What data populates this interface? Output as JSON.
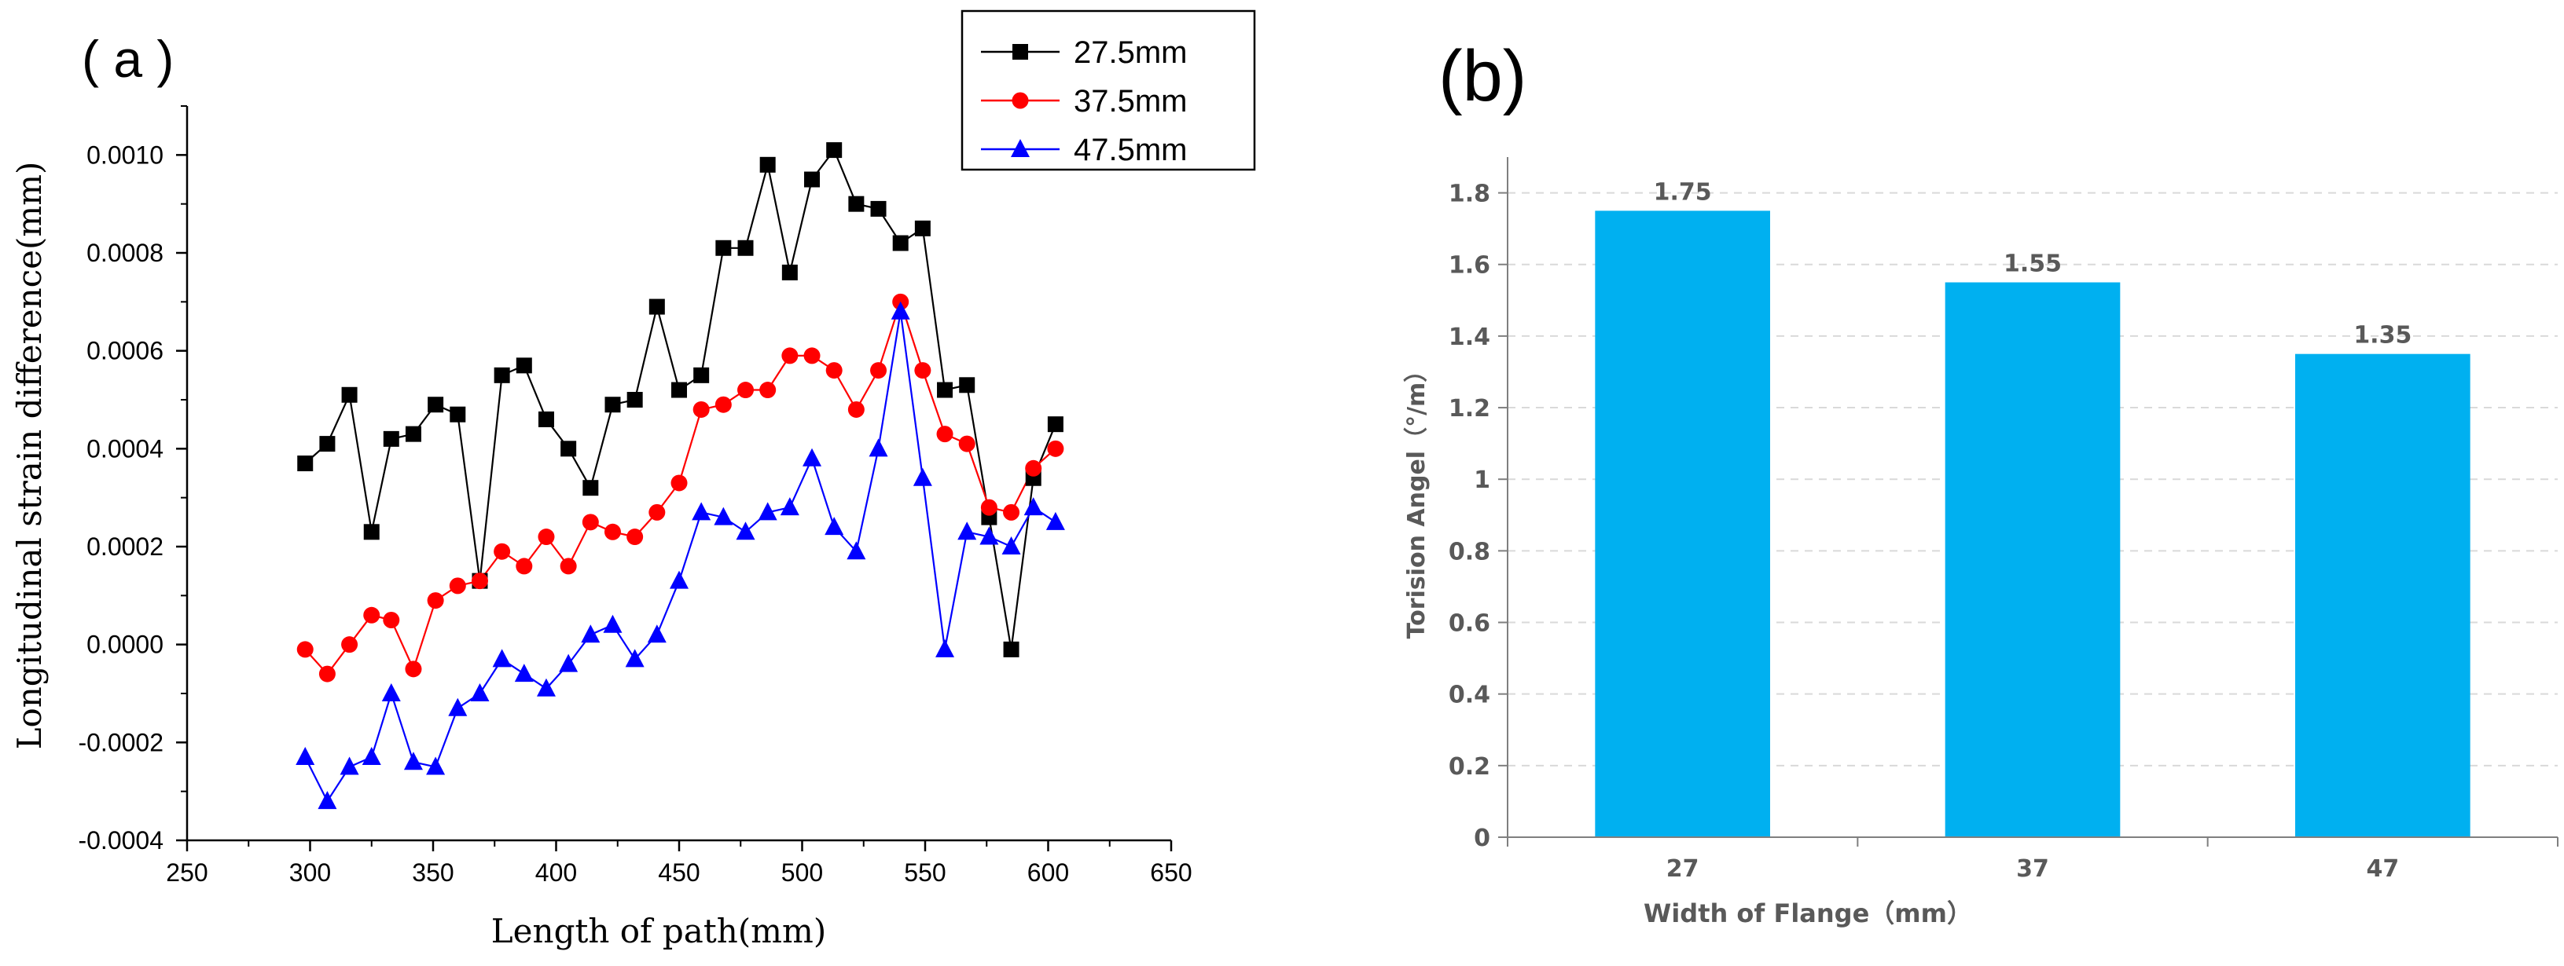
{
  "chart_data": [
    {
      "panel_label": "( a )",
      "type": "line",
      "xlabel": "Length of path(mm)",
      "ylabel": "Longitudinal strain difference(mm)",
      "xlim": [
        250,
        650
      ],
      "ylim": [
        -0.0004,
        0.0011
      ],
      "xticks": [
        250,
        300,
        350,
        400,
        450,
        500,
        550,
        600,
        650
      ],
      "yticks": [
        -0.0004,
        -0.0002,
        0.0,
        0.0002,
        0.0004,
        0.0006,
        0.0008,
        0.001
      ],
      "ytick_labels": [
        "-0.0004",
        "-0.0002",
        "0.0000",
        "0.0002",
        "0.0004",
        "0.0006",
        "0.0008",
        "0.0010"
      ],
      "legend_position": "top-right",
      "x": [
        298,
        307,
        316,
        325,
        333,
        342,
        351,
        360,
        369,
        378,
        387,
        396,
        405,
        414,
        423,
        432,
        441,
        450,
        459,
        468,
        477,
        486,
        495,
        504,
        513,
        522,
        531,
        540,
        549,
        558,
        567,
        576,
        585,
        594,
        603
      ],
      "series": [
        {
          "name": "27.5mm",
          "color": "#000000",
          "marker": "square",
          "values": [
            0.00037,
            0.00041,
            0.00051,
            0.00023,
            0.00042,
            0.00043,
            0.00049,
            0.00047,
            0.00013,
            0.00055,
            0.00057,
            0.00046,
            0.0004,
            0.00032,
            0.00049,
            0.0005,
            0.00069,
            0.00052,
            0.00055,
            0.00081,
            0.00081,
            0.00098,
            0.00076,
            0.00095,
            0.00101,
            0.0009,
            0.00089,
            0.00082,
            0.00085,
            0.00052,
            0.00053,
            0.00026,
            -1e-05,
            0.00034,
            0.00045
          ]
        },
        {
          "name": "37.5mm",
          "color": "#ff0000",
          "marker": "circle",
          "values": [
            -1e-05,
            -6e-05,
            0.0,
            6e-05,
            5e-05,
            -5e-05,
            9e-05,
            0.00012,
            0.00013,
            0.00019,
            0.00016,
            0.00022,
            0.00016,
            0.00025,
            0.00023,
            0.00022,
            0.00027,
            0.00033,
            0.00048,
            0.00049,
            0.00052,
            0.00052,
            0.00059,
            0.00059,
            0.00056,
            0.00048,
            0.00056,
            0.0007,
            0.00056,
            0.00043,
            0.00041,
            0.00028,
            0.00027,
            0.00036,
            0.0004
          ]
        },
        {
          "name": "47.5mm",
          "color": "#0000ff",
          "marker": "triangle",
          "values": [
            -0.00023,
            -0.00032,
            -0.00025,
            -0.00023,
            -0.0001,
            -0.00024,
            -0.00025,
            -0.00013,
            -0.0001,
            -3e-05,
            -6e-05,
            -9e-05,
            -4e-05,
            2e-05,
            4e-05,
            -3e-05,
            2e-05,
            0.00013,
            0.00027,
            0.00026,
            0.00023,
            0.00027,
            0.00028,
            0.00038,
            0.00024,
            0.00019,
            0.0004,
            0.00068,
            0.00034,
            -1e-05,
            0.00023,
            0.00022,
            0.0002,
            0.00028,
            0.00025
          ]
        }
      ]
    },
    {
      "panel_label": "(b)",
      "type": "bar",
      "xlabel": "Width of Flange（mm）",
      "ylabel": "Torision Angel（°/m）",
      "categories": [
        "27",
        "37",
        "47"
      ],
      "values": [
        1.75,
        1.55,
        1.35
      ],
      "value_labels": [
        "1.75",
        "1.55",
        "1.35"
      ],
      "ylim": [
        0,
        1.9
      ],
      "yticks": [
        0,
        0.2,
        0.4,
        0.6,
        0.8,
        1,
        1.2,
        1.4,
        1.6,
        1.8
      ],
      "ytick_labels": [
        "0",
        "0.2",
        "0.4",
        "0.6",
        "0.8",
        "1",
        "1.2",
        "1.4",
        "1.6",
        "1.8"
      ],
      "bar_color": "#00b0f0",
      "grid": true
    }
  ]
}
